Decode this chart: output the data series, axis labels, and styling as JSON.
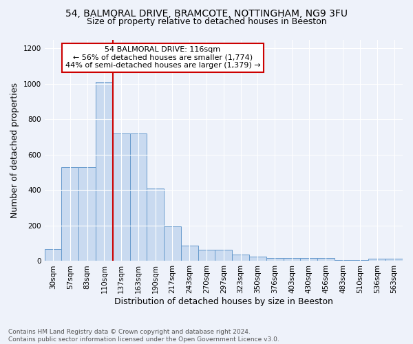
{
  "title1": "54, BALMORAL DRIVE, BRAMCOTE, NOTTINGHAM, NG9 3FU",
  "title2": "Size of property relative to detached houses in Beeston",
  "xlabel": "Distribution of detached houses by size in Beeston",
  "ylabel": "Number of detached properties",
  "bar_color": "#c9daf0",
  "bar_edge_color": "#6699cc",
  "categories": [
    "30sqm",
    "57sqm",
    "83sqm",
    "110sqm",
    "137sqm",
    "163sqm",
    "190sqm",
    "217sqm",
    "243sqm",
    "270sqm",
    "297sqm",
    "323sqm",
    "350sqm",
    "376sqm",
    "403sqm",
    "430sqm",
    "456sqm",
    "483sqm",
    "510sqm",
    "536sqm",
    "563sqm"
  ],
  "values": [
    68,
    530,
    530,
    1010,
    720,
    720,
    410,
    195,
    88,
    62,
    62,
    35,
    25,
    18,
    18,
    18,
    18,
    7,
    7,
    13,
    13
  ],
  "annotation_text": "54 BALMORAL DRIVE: 116sqm\n← 56% of detached houses are smaller (1,774)\n44% of semi-detached houses are larger (1,379) →",
  "vline_color": "#cc0000",
  "annotation_box_edge": "#cc0000",
  "footer_text": "Contains HM Land Registry data © Crown copyright and database right 2024.\nContains public sector information licensed under the Open Government Licence v3.0.",
  "ylim": [
    0,
    1250
  ],
  "background_color": "#eef2fa",
  "title_fontsize": 10,
  "subtitle_fontsize": 9,
  "tick_fontsize": 7.5,
  "ylabel_fontsize": 9,
  "xlabel_fontsize": 9,
  "annotation_fontsize": 8
}
